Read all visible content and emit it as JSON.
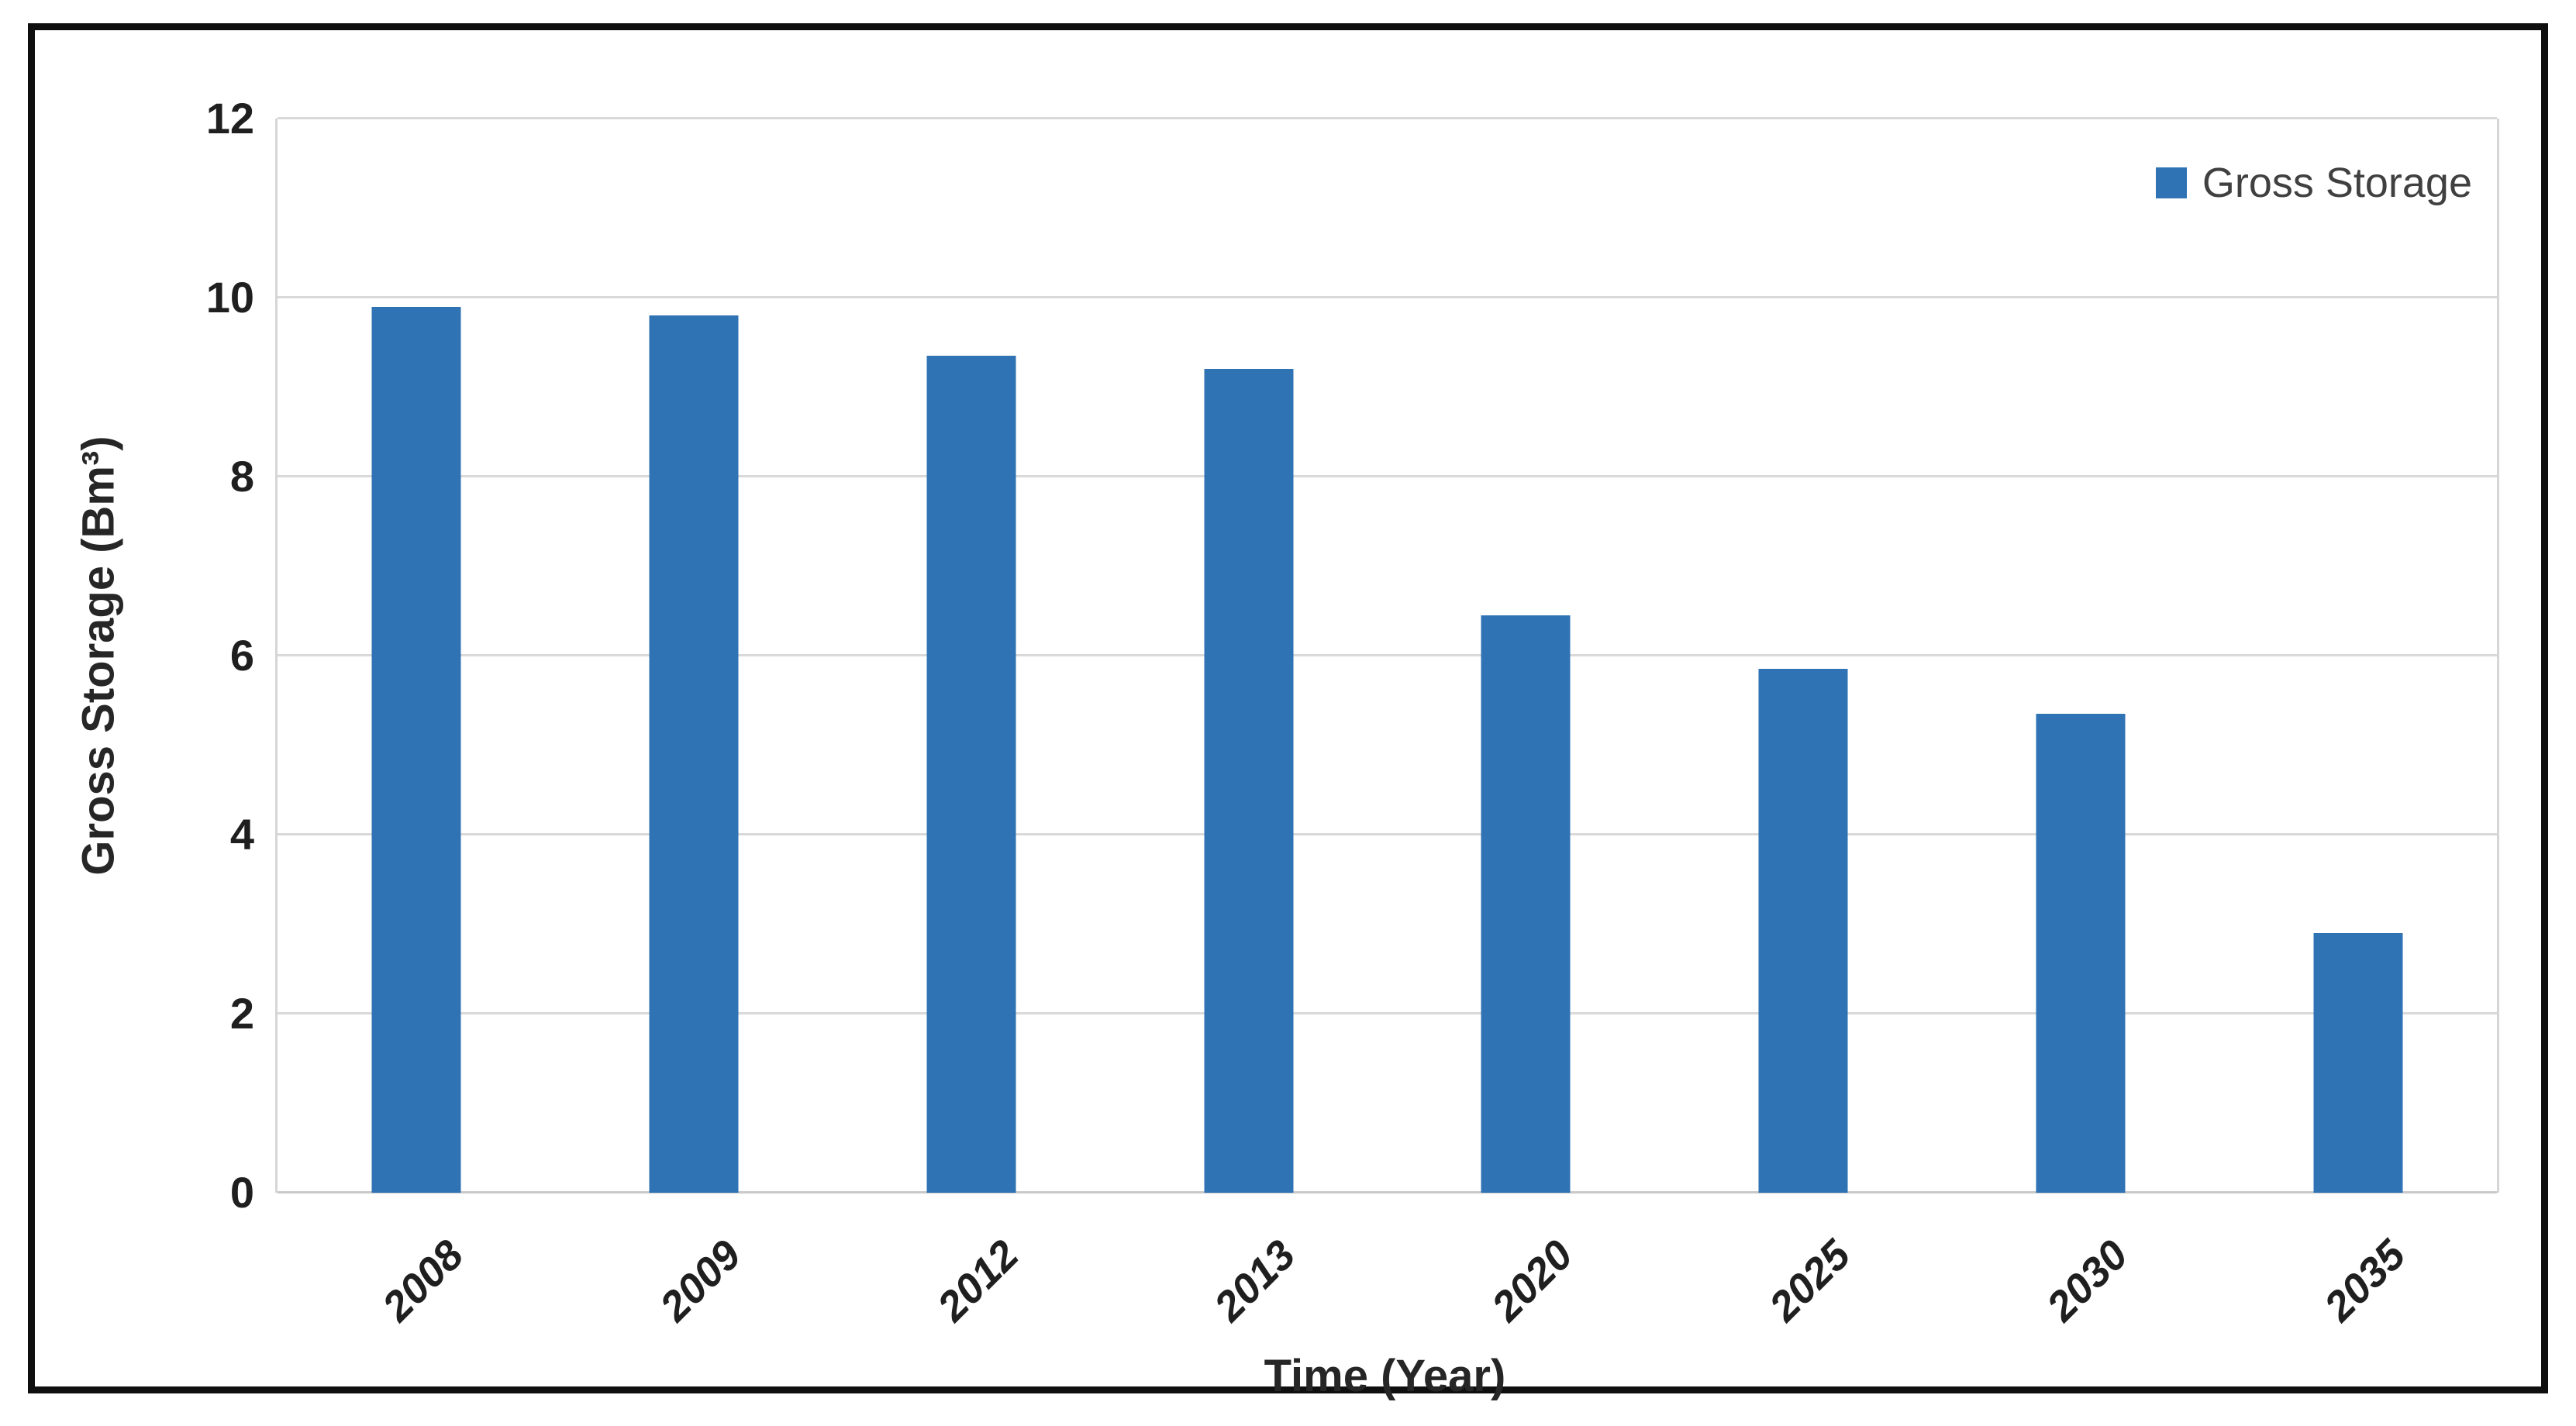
{
  "figure": {
    "background": "#ffffff",
    "frame_color": "#0f0f0f"
  },
  "chart_data": {
    "type": "bar",
    "title": "",
    "categories": [
      "2008",
      "2009",
      "2012",
      "2013",
      "2020",
      "2025",
      "2030",
      "2035"
    ],
    "values": [
      9.9,
      9.8,
      9.35,
      9.2,
      6.45,
      5.85,
      5.35,
      2.9
    ],
    "series_name": "Gross Storage",
    "legend": [
      "Gross Storage"
    ],
    "legend_position": "top-right",
    "xlabel": "Time (Year)",
    "ylabel": "Gross Storage (Bm³)",
    "ylim": [
      0,
      12
    ],
    "yticks": [
      0,
      2,
      4,
      6,
      8,
      10,
      12
    ],
    "bar_color": "#2f73b4",
    "gridline_color": "#d9d9d9",
    "grid": "horizontal"
  }
}
